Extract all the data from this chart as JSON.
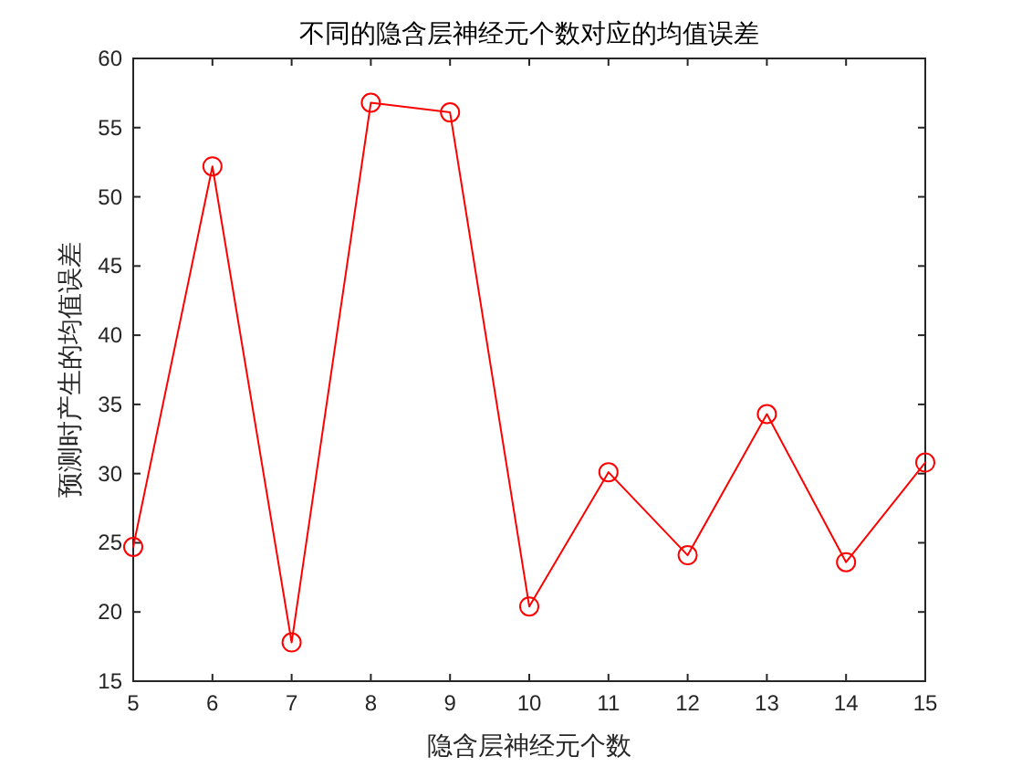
{
  "chart_data": {
    "type": "line",
    "title": "不同的隐含层神经元个数对应的均值误差",
    "xlabel": "隐含层神经元个数",
    "ylabel": "预测时产生的均值误差",
    "x": [
      5,
      6,
      7,
      8,
      9,
      10,
      11,
      12,
      13,
      14,
      15
    ],
    "series": [
      {
        "color": "#ff0000",
        "values": [
          24.7,
          52.2,
          17.8,
          56.8,
          56.1,
          20.4,
          30.1,
          24.1,
          34.3,
          23.6,
          30.8
        ]
      }
    ],
    "xlim": [
      5,
      15
    ],
    "xticks": [
      5,
      6,
      7,
      8,
      9,
      10,
      11,
      12,
      13,
      14,
      15
    ],
    "ylim": [
      15,
      60
    ],
    "yticks": [
      15,
      20,
      25,
      30,
      35,
      40,
      45,
      50,
      55,
      60
    ],
    "marker": "circle",
    "line_style": "solid",
    "grid": false
  }
}
